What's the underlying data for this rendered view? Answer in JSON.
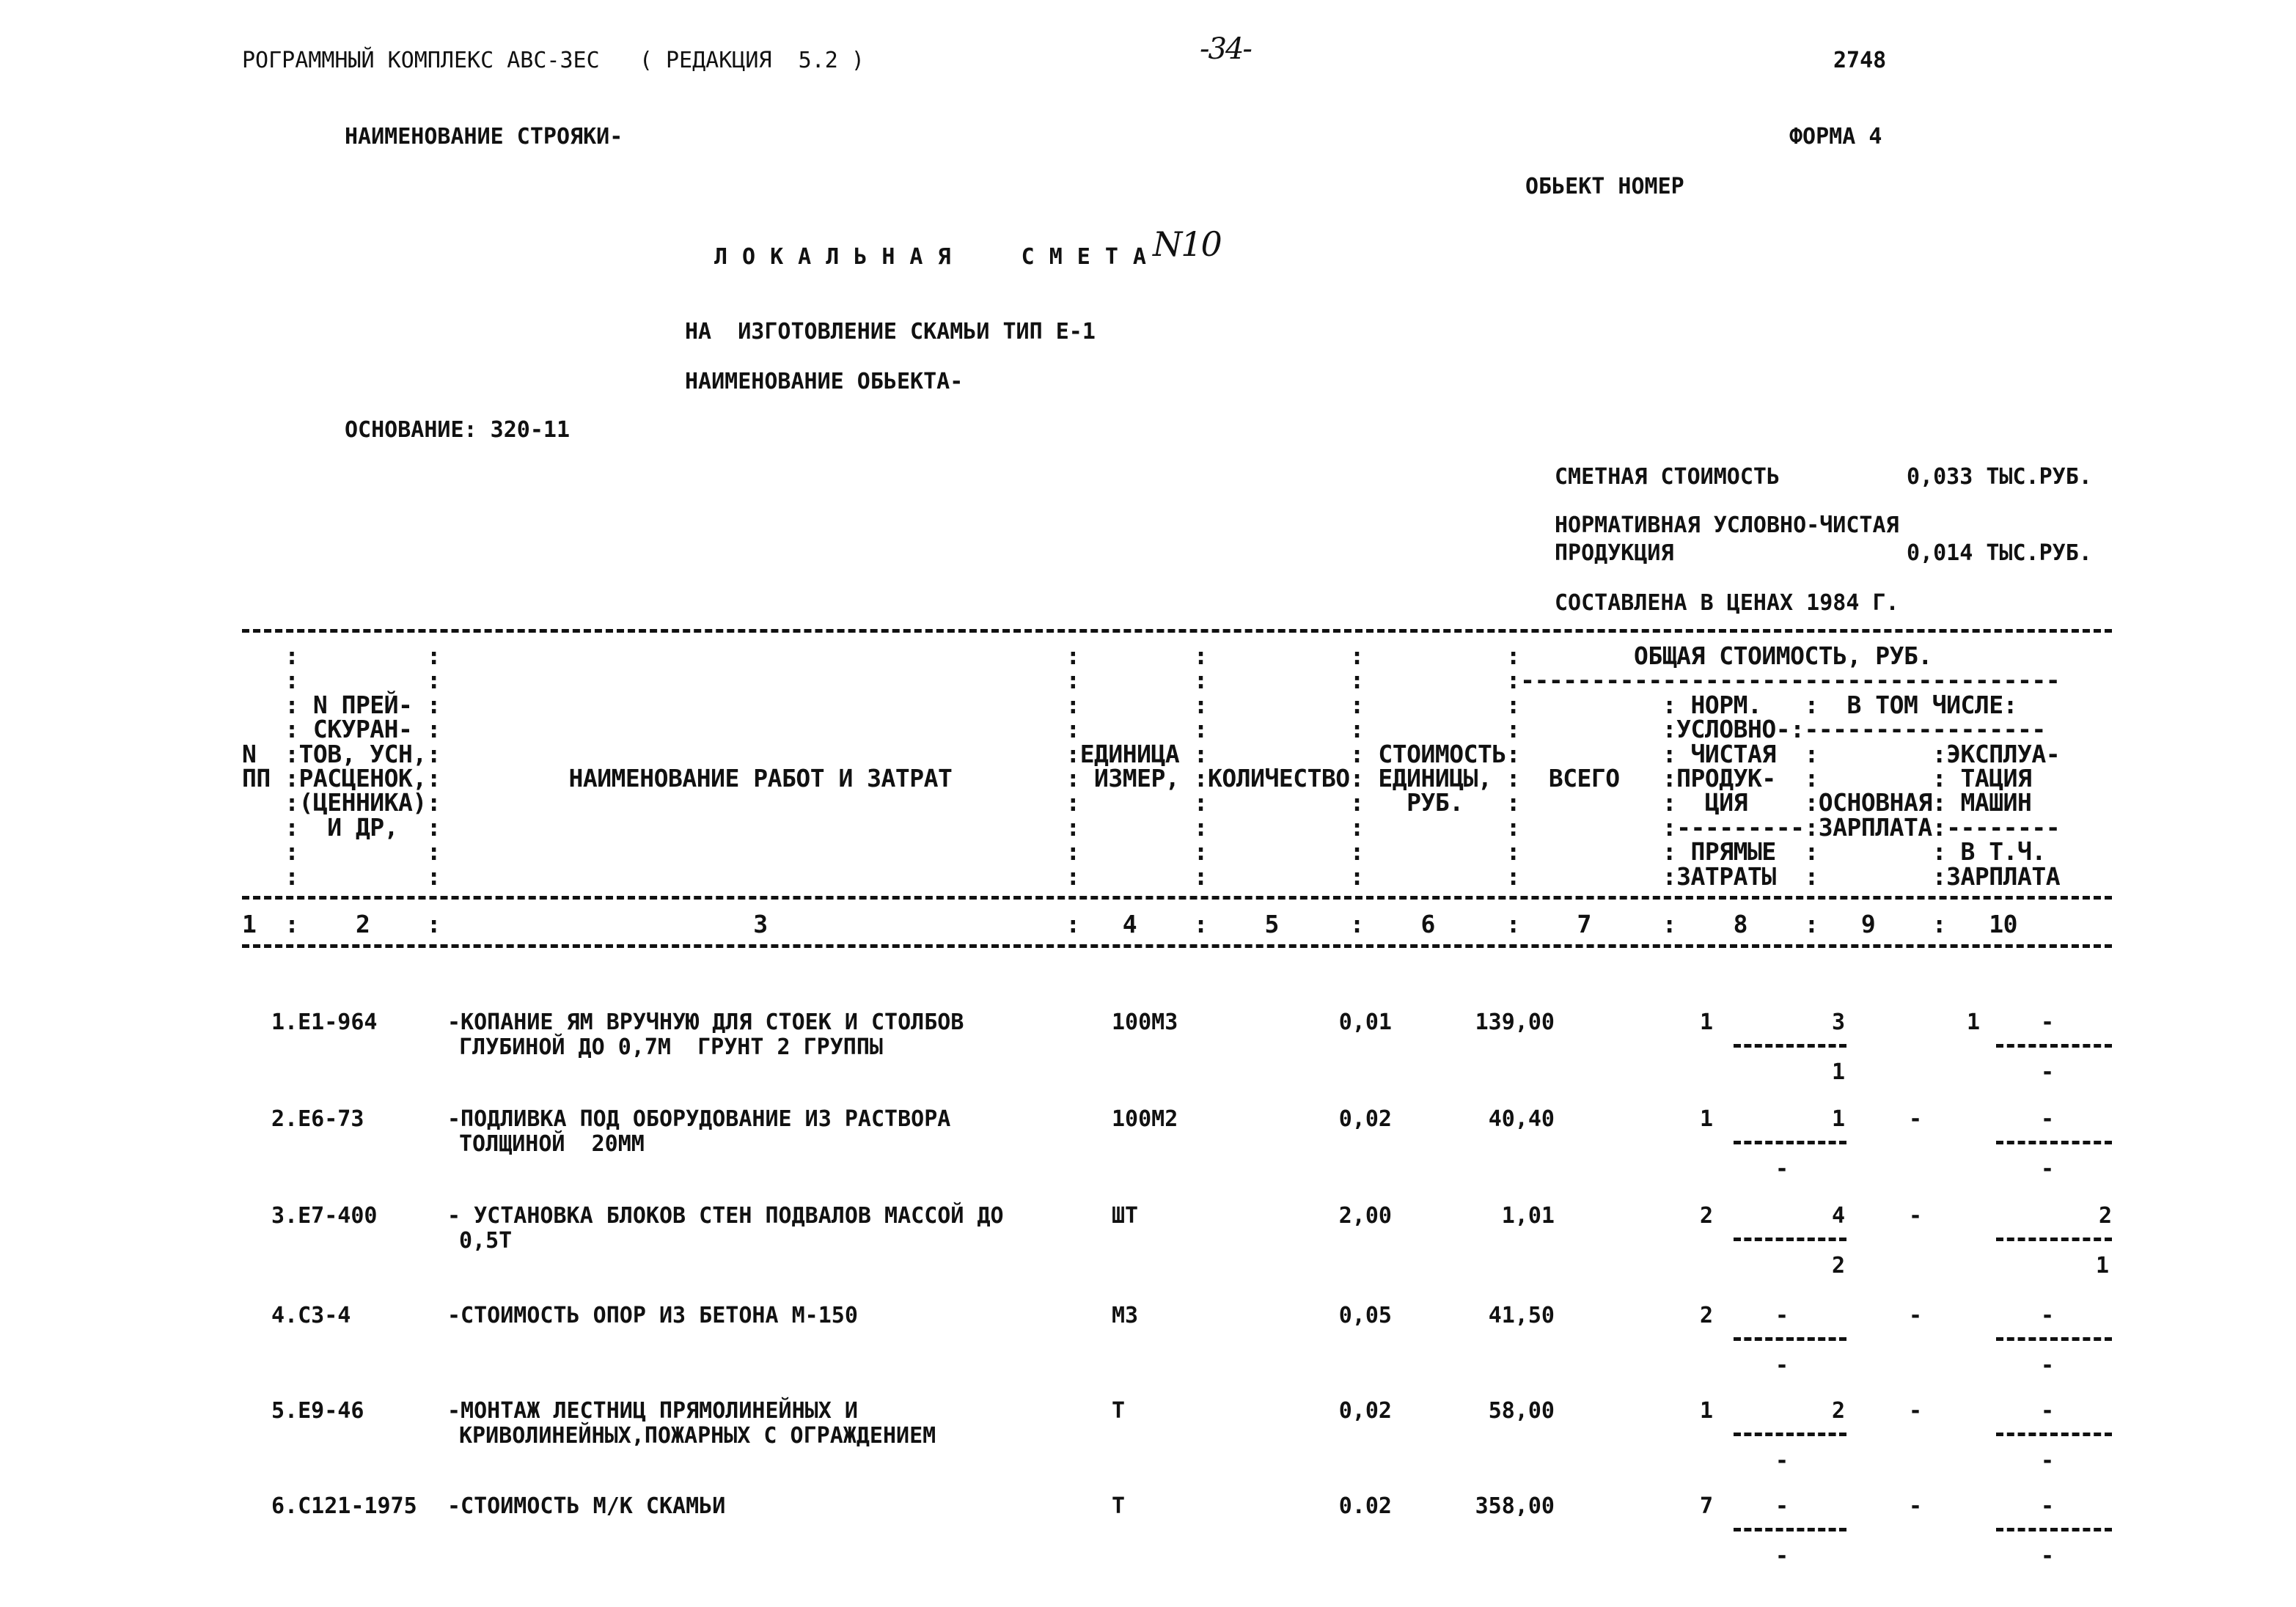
{
  "page_header": {
    "program": "РОГРАММНЫЙ КОМПЛЕКС АВС-3ЕС   ( РЕДАКЦИЯ  5.2 )",
    "page_number": "-34-",
    "doc_number": "2748"
  },
  "construction_name_label": "НАИМЕНОВАНИЕ СТРОЯКИ-",
  "form_label": "ФОРМА 4",
  "object_number_label": "ОБЬЕКТ НОМЕР",
  "title": "ЛОКАЛЬНАЯ  СМЕТА",
  "title_handwritten_number": "N10",
  "subtitle": "НА  ИЗГОТОВЛЕНИЕ СКАМЬИ ТИП Е-1",
  "object_name_label": "НАИМЕНОВАНИЕ ОБЬЕКТА-",
  "basis": "ОСНОВАНИЕ: 320-11",
  "summary": {
    "estimated_cost_label": "СМЕТНАЯ СТОИМОСТЬ",
    "estimated_cost_value": "0,033 ТЫС.РУБ.",
    "net_product_label_1": "НОРМАТИВНАЯ УСЛОВНО-ЧИСТАЯ",
    "net_product_label_2": "ПРОДУКЦИЯ",
    "net_product_value": "0,014 ТЫС.РУБ.",
    "prices_note": "СОСТАВЛЕНА В ЦЕНАХ 1984 Г."
  },
  "table_header_lines": [
    "   :         :                                            :        :          :          :        ОБЩАЯ СТОИМОСТЬ, РУБ.",
    "   :         :                                            :        :          :          :--------------------------------------",
    "   : N ПРЕЙ- :                                            :        :          :          :          : НОРМ.   :  В ТОМ ЧИСЛЕ:",
    "   : СКУРАН- :                                            :        :          :          :          :УСЛОВНО-:-----------------",
    "N  :ТОВ, УСН,:                                            :ЕДИНИЦА :          : СТОИМОСТЬ:          : ЧИСТАЯ  :        :ЭКСПЛУА-",
    "ПП :РАСЦЕНОК,:         НАИМЕНОВАНИЕ РАБОТ И ЗАТРАТ        : ИЗМЕР, :КОЛИЧЕСТВО: ЕДИНИЦЫ, :  ВСЕГО   :ПРОДУК-  :        : ТАЦИЯ",
    "   :(ЦЕННИКА):                                            :        :          :   РУБ.   :          :  ЦИЯ    :ОСНОВНАЯ: МАШИН",
    "   :  И ДР,  :                                            :        :          :          :          :---------:ЗАРПЛАТА:--------",
    "   :         :                                            :        :          :          :          : ПРЯМЫЕ  :        : В Т.Ч.",
    "   :         :                                            :        :          :          :          :ЗАТРАТЫ  :        :ЗАРПЛАТА"
  ],
  "column_numbers_line": "1  :    2    :                      3                     :   4    :    5     :    6     :    7     :    8    :   9    :   10",
  "rows": [
    {
      "code": "1.Е1-964",
      "name_1": "-КОПАНИЕ ЯМ ВРУЧНУЮ ДЛЯ СТОЕК И СТОЛБОВ",
      "name_2": "ГЛУБИНОЙ ДО 0,7М  ГРУНТ 2 ГРУППЫ",
      "unit": "100М3",
      "quantity": "0,01",
      "unit_price": "139,00",
      "total": "1",
      "net_product": "3",
      "direct_costs": "1",
      "base_wage": "1",
      "machine_cost": "-",
      "machine_wage": "-"
    },
    {
      "code": "2.Е6-73",
      "name_1": "-ПОДЛИВКА ПОД ОБОРУДОВАНИЕ ИЗ РАСТВОРА",
      "name_2": "ТОЛЩИНОЙ  20ММ",
      "unit": "100М2",
      "quantity": "0,02",
      "unit_price": "40,40",
      "total": "1",
      "net_product": "1",
      "direct_costs": "-",
      "base_wage": "-",
      "machine_cost": "-",
      "machine_wage": "-"
    },
    {
      "code": "3.Е7-400",
      "name_1": "- УСТАНОВКА БЛОКОВ СТЕН ПОДВАЛОВ МАССОЙ ДО",
      "name_2": "0,5Т",
      "unit": "ШТ",
      "quantity": "2,00",
      "unit_price": "1,01",
      "total": "2",
      "net_product": "4",
      "direct_costs": "2",
      "base_wage": "-",
      "machine_cost": "2",
      "machine_wage": "1"
    },
    {
      "code": "4.С3-4",
      "name_1": "-СТОИМОСТЬ ОПОР ИЗ БЕТОНА М-150",
      "name_2": "",
      "unit": "М3",
      "quantity": "0,05",
      "unit_price": "41,50",
      "total": "2",
      "net_product": "-",
      "direct_costs": "-",
      "base_wage": "-",
      "machine_cost": "-",
      "machine_wage": "-"
    },
    {
      "code": "5.Е9-46",
      "name_1": "-МОНТАЖ ЛЕСТНИЦ ПРЯМОЛИНЕЙНЫХ И",
      "name_2": "КРИВОЛИНЕЙНЫХ,ПОЖАРНЫХ С ОГРАЖДЕНИЕМ",
      "unit": "Т",
      "quantity": "0,02",
      "unit_price": "58,00",
      "total": "1",
      "net_product": "2",
      "direct_costs": "-",
      "base_wage": "-",
      "machine_cost": "-",
      "machine_wage": "-"
    },
    {
      "code": "6.С121-1975",
      "name_1": "-СТОИМОСТЬ М/К СКАМЬИ",
      "name_2": "",
      "unit": "Т",
      "quantity": "0.02",
      "unit_price": "358,00",
      "total": "7",
      "net_product": "-",
      "direct_costs": "-",
      "base_wage": "-",
      "machine_cost": "-",
      "machine_wage": "-"
    }
  ]
}
